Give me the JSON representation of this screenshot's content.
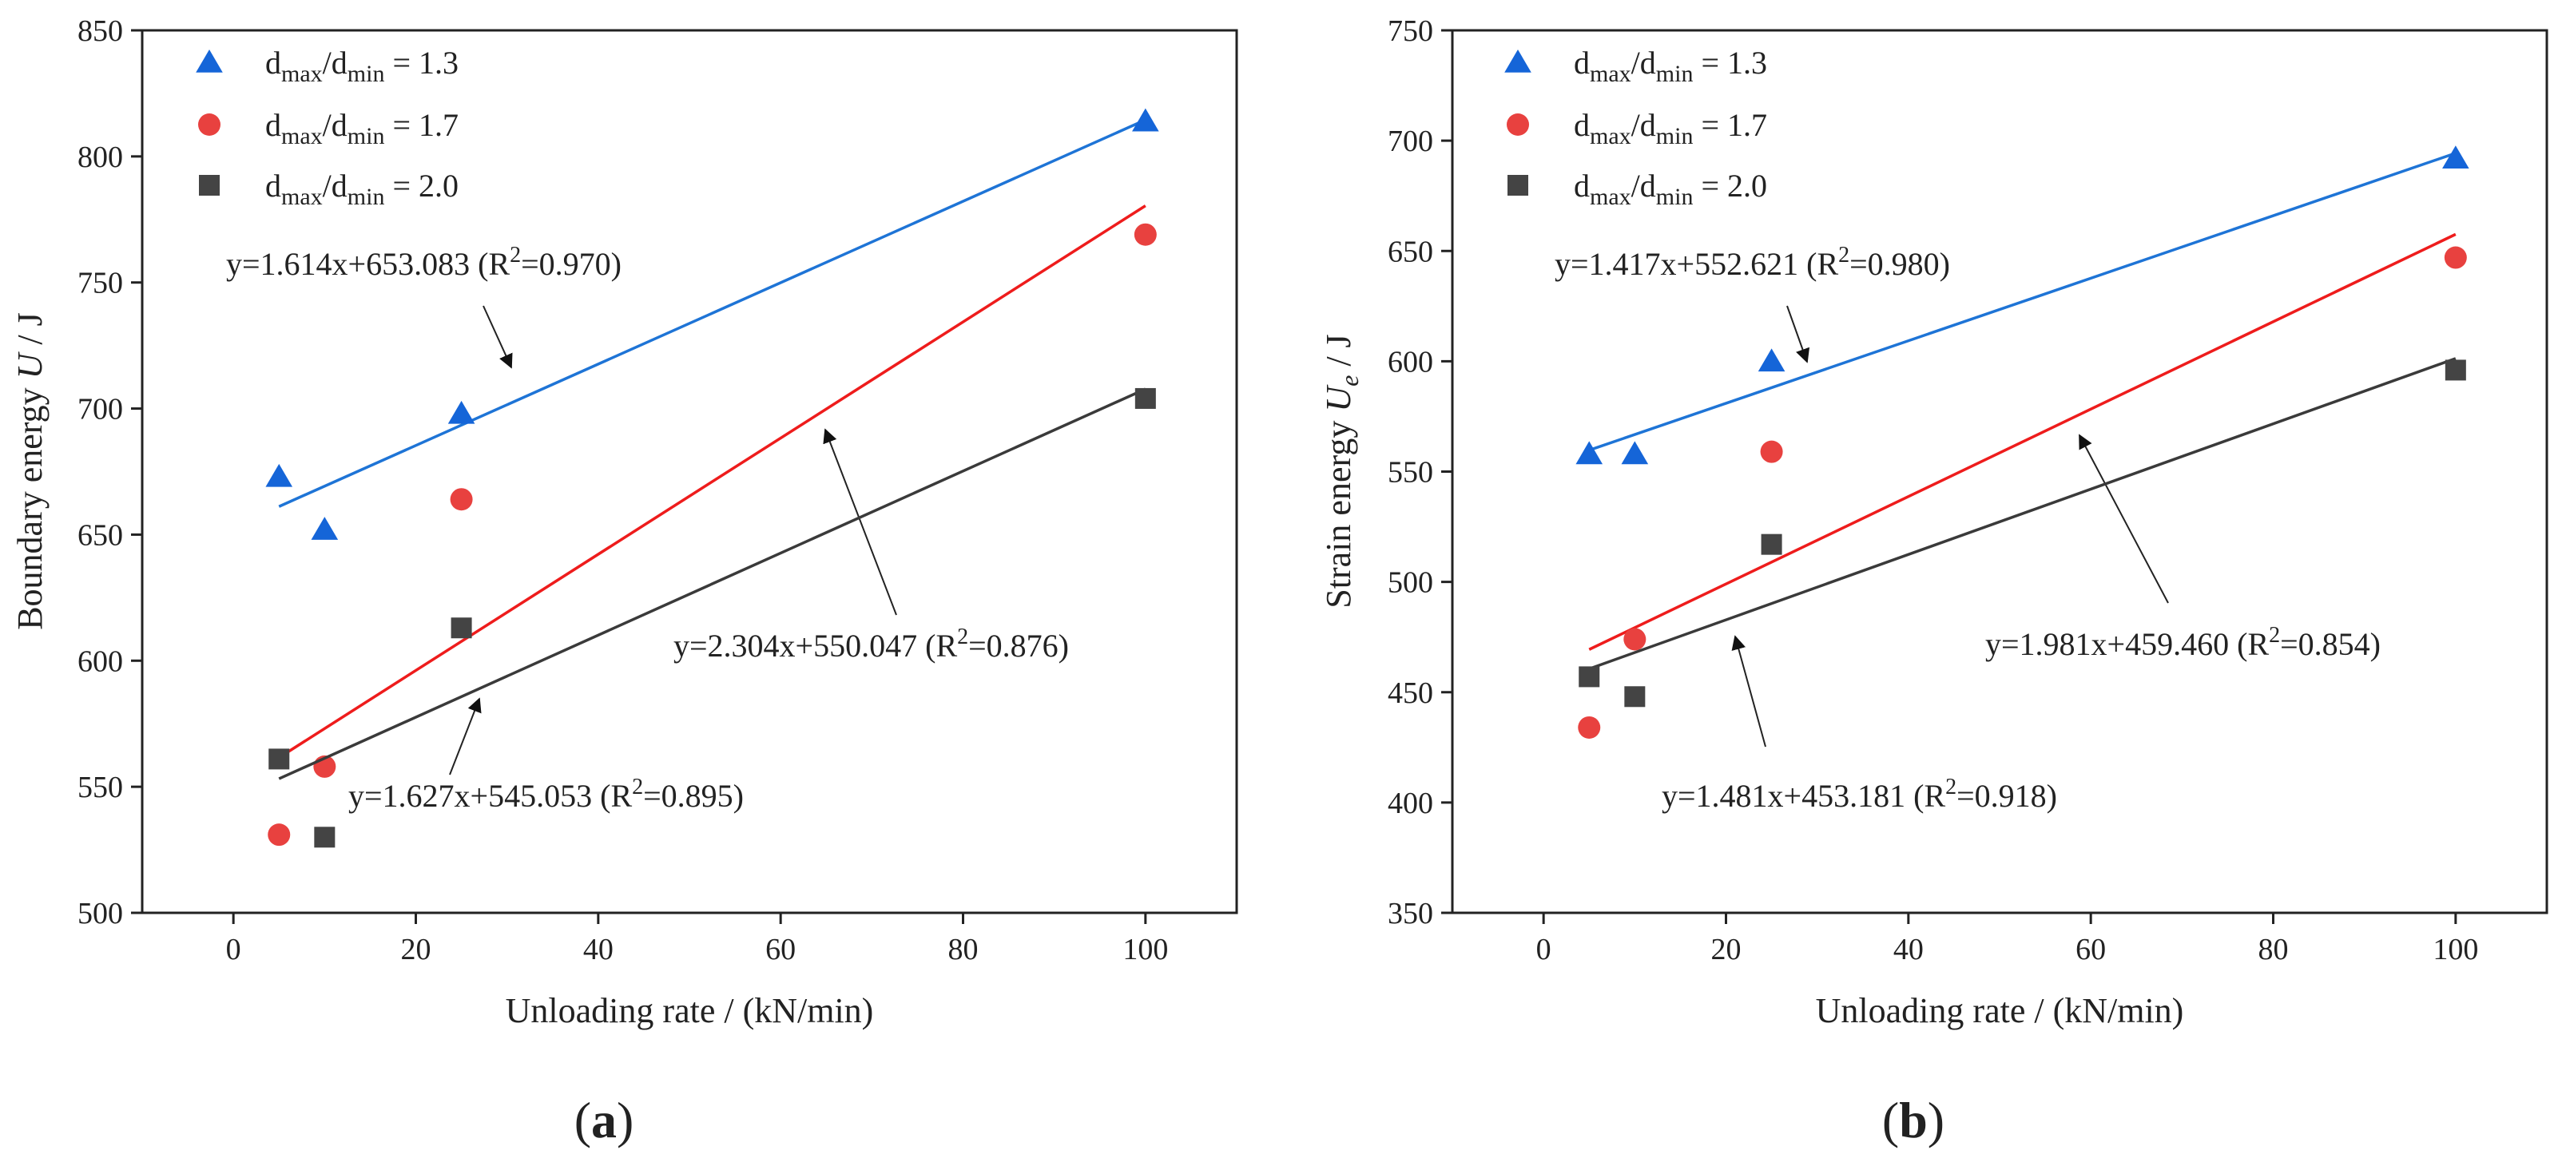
{
  "chart_data": [
    {
      "type": "scatter",
      "panel_label": "(a)",
      "xlabel": "Unloading rate / (kN/min)",
      "ylabel_main": "Boundary energy",
      "ylabel_symbol": "U",
      "ylabel_sub": "",
      "ylabel_unit": " / J",
      "xlim": [
        -10,
        110
      ],
      "ylim": [
        500,
        850
      ],
      "xticks": [
        0,
        20,
        40,
        60,
        80,
        100
      ],
      "yticks": [
        500,
        550,
        600,
        650,
        700,
        750,
        800,
        850
      ],
      "grid": false,
      "legend_position": "top-left",
      "series": [
        {
          "key": "r13",
          "legend_prefix": "d",
          "legend_sub1": "max",
          "legend_mid": "/d",
          "legend_sub2": "min",
          "legend_suffix": " = 1.3",
          "marker": "triangle",
          "color": "#1565d8",
          "line_color": "#1e74d6",
          "x": [
            5,
            10,
            25,
            100
          ],
          "y": [
            673,
            652,
            698,
            814
          ],
          "fit": {
            "slope": 1.614,
            "intercept": 653.083,
            "x_range": [
              5,
              100
            ],
            "equation": "y=1.614x+653.083",
            "r2_prefix": " (R",
            "r2_sup": "2",
            "r2_suffix": "=0.970)"
          }
        },
        {
          "key": "r17",
          "legend_prefix": "d",
          "legend_sub1": "max",
          "legend_mid": "/d",
          "legend_sub2": "min",
          "legend_suffix": " = 1.7",
          "marker": "circle",
          "color": "#e8413f",
          "line_color": "#ee1c1c",
          "x": [
            5,
            10,
            25,
            100
          ],
          "y": [
            531,
            558,
            664,
            769
          ],
          "fit": {
            "slope": 2.304,
            "intercept": 550.047,
            "x_range": [
              5,
              100
            ],
            "equation": "y=2.304x+550.047",
            "r2_prefix": " (R",
            "r2_sup": "2",
            "r2_suffix": "=0.876)"
          }
        },
        {
          "key": "r20",
          "legend_prefix": "d",
          "legend_sub1": "max",
          "legend_mid": "/d",
          "legend_sub2": "min",
          "legend_suffix": " = 2.0",
          "marker": "square",
          "color": "#444444",
          "line_color": "#3a3a3a",
          "x": [
            5,
            10,
            25,
            100
          ],
          "y": [
            561,
            530,
            613,
            704
          ],
          "fit": {
            "slope": 1.627,
            "intercept": 545.053,
            "x_range": [
              5,
              100
            ],
            "equation": "y=1.627x+545.053",
            "r2_prefix": " (R",
            "r2_sup": "2",
            "r2_suffix": "=0.895)"
          }
        }
      ]
    },
    {
      "type": "scatter",
      "panel_label": "(b)",
      "xlabel": "Unloading rate / (kN/min)",
      "ylabel_main": "Strain energy",
      "ylabel_symbol": "U",
      "ylabel_sub": "e",
      "ylabel_unit": " / J",
      "xlim": [
        -10,
        110
      ],
      "ylim": [
        350,
        750
      ],
      "xticks": [
        0,
        20,
        40,
        60,
        80,
        100
      ],
      "yticks": [
        350,
        400,
        450,
        500,
        550,
        600,
        650,
        700,
        750
      ],
      "grid": false,
      "legend_position": "top-left",
      "series": [
        {
          "key": "r13",
          "legend_prefix": "d",
          "legend_sub1": "max",
          "legend_mid": "/d",
          "legend_sub2": "min",
          "legend_suffix": " = 1.3",
          "marker": "triangle",
          "color": "#1565d8",
          "line_color": "#1e74d6",
          "x": [
            5,
            10,
            25,
            100
          ],
          "y": [
            558,
            558,
            600,
            692
          ],
          "fit": {
            "slope": 1.417,
            "intercept": 552.621,
            "x_range": [
              5,
              100
            ],
            "equation": "y=1.417x+552.621",
            "r2_prefix": " (R",
            "r2_sup": "2",
            "r2_suffix": "=0.980)"
          }
        },
        {
          "key": "r17",
          "legend_prefix": "d",
          "legend_sub1": "max",
          "legend_mid": "/d",
          "legend_sub2": "min",
          "legend_suffix": " = 1.7",
          "marker": "circle",
          "color": "#e8413f",
          "line_color": "#ee1c1c",
          "x": [
            5,
            10,
            25,
            100
          ],
          "y": [
            434,
            474,
            559,
            647
          ],
          "fit": {
            "slope": 1.981,
            "intercept": 459.46,
            "x_range": [
              5,
              100
            ],
            "equation": "y=1.981x+459.460",
            "r2_prefix": " (R",
            "r2_sup": "2",
            "r2_suffix": "=0.854)"
          }
        },
        {
          "key": "r20",
          "legend_prefix": "d",
          "legend_sub1": "max",
          "legend_mid": "/d",
          "legend_sub2": "min",
          "legend_suffix": " = 2.0",
          "marker": "square",
          "color": "#444444",
          "line_color": "#3a3a3a",
          "x": [
            5,
            10,
            25,
            100
          ],
          "y": [
            457,
            448,
            517,
            596
          ],
          "fit": {
            "slope": 1.481,
            "intercept": 453.181,
            "x_range": [
              5,
              100
            ],
            "equation": "y=1.481x+453.181",
            "r2_prefix": " (R",
            "r2_sup": "2",
            "r2_suffix": "=0.918)"
          }
        }
      ]
    }
  ]
}
